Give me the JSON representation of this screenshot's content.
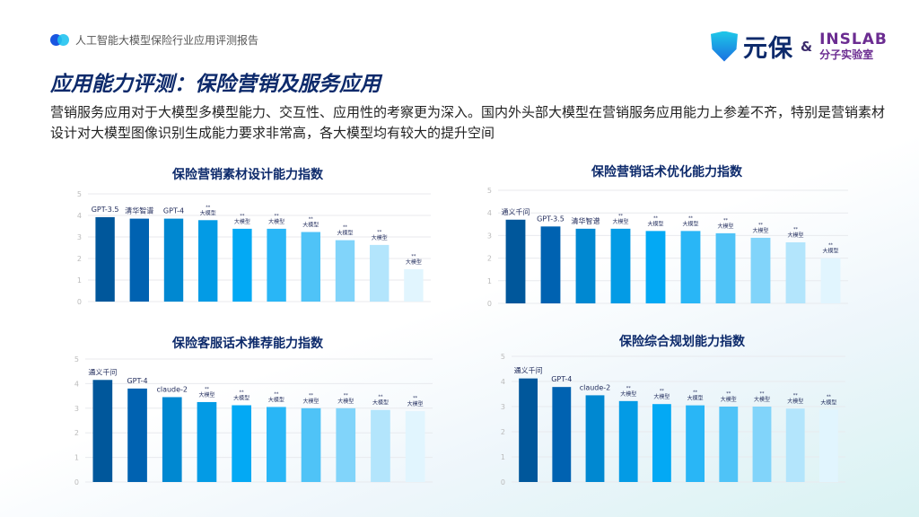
{
  "header": {
    "report_title": "人工智能大模型保险行业应用评测报告",
    "brand": "元保",
    "amp": "&",
    "partner": "INSLAB",
    "partner_sub": "分子实验室"
  },
  "page": {
    "title": "应用能力评测：保险营销及服务应用",
    "description": "营销服务应用对于大模型多模型能力、交互性、应用性的考察更为深入。国内外头部大模型在营销服务应用能力上参差不齐，特别是营销素材设计对大模型图像识别生成能力要求非常高，各大模型均有较大的提升空间"
  },
  "colors": [
    "#00579b",
    "#0062b1",
    "#0088d1",
    "#039be5",
    "#03a9f4",
    "#29b6f6",
    "#4fc3f7",
    "#81d4fa",
    "#b3e5fc",
    "#e1f5fe"
  ],
  "chart_data": [
    {
      "type": "bar",
      "title": "保险营销素材设计能力指数",
      "ylim": [
        0,
        5
      ],
      "yticks": [
        0,
        1,
        2,
        3,
        4,
        5
      ],
      "grid": true,
      "categories": [
        "GPT-3.5",
        "清华智谱",
        "GPT-4",
        "**大模型",
        "**大模型",
        "**大模型",
        "**大模型",
        "**大模型",
        "**大模型",
        "**大模型"
      ],
      "values": [
        3.92,
        3.85,
        3.85,
        3.78,
        3.38,
        3.38,
        3.23,
        2.85,
        2.63,
        1.5
      ]
    },
    {
      "type": "bar",
      "title": "保险营销话术优化能力指数",
      "ylim": [
        0,
        5
      ],
      "yticks": [
        0,
        1,
        2,
        3,
        4,
        5
      ],
      "grid": true,
      "categories": [
        "通义千问",
        "GPT-3.5",
        "清华智谱",
        "**大模型",
        "**大模型",
        "**大模型",
        "**大模型",
        "**大模型",
        "**大模型",
        "**大模型"
      ],
      "values": [
        3.7,
        3.4,
        3.3,
        3.3,
        3.2,
        3.2,
        3.1,
        2.9,
        2.7,
        2.0
      ]
    },
    {
      "type": "bar",
      "title": "保险客服话术推荐能力指数",
      "ylim": [
        0,
        5
      ],
      "yticks": [
        0,
        1,
        2,
        3,
        4,
        5
      ],
      "grid": true,
      "categories": [
        "通义千问",
        "GPT-4",
        "claude-2",
        "**大模型",
        "**大模型",
        "**大模型",
        "**大模型",
        "**大模型",
        "**大模型",
        "**大模型"
      ],
      "values": [
        4.15,
        3.8,
        3.45,
        3.25,
        3.12,
        3.05,
        3.0,
        3.0,
        2.93,
        2.88
      ]
    },
    {
      "type": "bar",
      "title": "保险综合规划能力指数",
      "ylim": [
        0,
        5
      ],
      "yticks": [
        0,
        1,
        2,
        3,
        4,
        5
      ],
      "grid": true,
      "categories": [
        "通义千问",
        "GPT-4",
        "claude-2",
        "**大模型",
        "**大模型",
        "**大模型",
        "**大模型",
        "**大模型",
        "**大模型",
        "**大模型"
      ],
      "values": [
        4.12,
        3.78,
        3.45,
        3.22,
        3.1,
        3.05,
        3.0,
        3.0,
        2.92,
        2.88
      ]
    }
  ]
}
